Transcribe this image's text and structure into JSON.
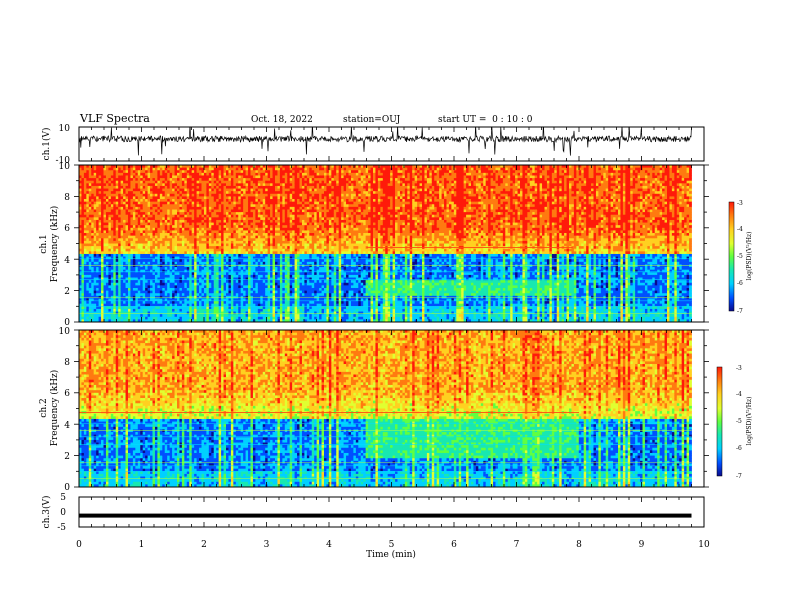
{
  "header": {
    "title": "VLF Spectra",
    "date": "Oct. 18, 2022",
    "station": "station=OUJ",
    "start": "start UT =  0 : 10 : 0"
  },
  "colors": {
    "spectrum_ramp": [
      "#0a0a8c",
      "#0050ff",
      "#00d0ff",
      "#18e8b0",
      "#60ff40",
      "#e0ff30",
      "#ffd020",
      "#ff7a10",
      "#ff1a0a"
    ]
  },
  "chart_data": [
    {
      "type": "line",
      "name": "ch1-waveform",
      "ylabel": "ch.1(V)",
      "ylim": [
        -10,
        10
      ],
      "ytick_labels": [
        "10",
        "-10"
      ],
      "xlim": [
        0,
        10
      ],
      "baseline": 3,
      "notes_values_typical_range": [
        0,
        6
      ]
    },
    {
      "type": "heatmap",
      "name": "ch1-spectrogram",
      "ylabel": "ch.1\nFrequency (kHz)",
      "ylim": [
        0,
        10
      ],
      "ytick_labels": [
        "0",
        "2",
        "4",
        "6",
        "8",
        "10"
      ],
      "xlim": [
        0,
        9.8
      ],
      "colorbar": {
        "label": "log(PSD)(V²/Hz)",
        "range": [
          -7,
          -3
        ],
        "tick_labels": [
          "-3",
          "-4",
          "-5",
          "-6",
          "-7"
        ]
      },
      "features": {
        "quiet_band_upper_kHz": 4.3,
        "enhanced_band_kHz": [
          1.7,
          2.6
        ],
        "enhanced_band_time_min": [
          4.6,
          7.9
        ],
        "emission_line_kHz": 4.75
      }
    },
    {
      "type": "heatmap",
      "name": "ch2-spectrogram",
      "ylabel": "ch.2\nFrequency (kHz)",
      "ylim": [
        0,
        10
      ],
      "ytick_labels": [
        "0",
        "2",
        "4",
        "6",
        "8",
        "10"
      ],
      "xlim": [
        0,
        9.8
      ],
      "colorbar": {
        "label": "log(PSD)(V²/Hz)",
        "range": [
          -7,
          -3
        ],
        "tick_labels": [
          "-3",
          "-4",
          "-5",
          "-6",
          "-7"
        ]
      },
      "features": {
        "quiet_band_upper_kHz": 4.4,
        "enhanced_band_kHz": [
          1.8,
          4.6
        ],
        "enhanced_band_time_min": [
          4.6,
          8.0
        ],
        "emission_line_kHz": 4.75
      }
    },
    {
      "type": "line",
      "name": "ch3-waveform",
      "ylabel": "ch.3(V)",
      "ylim": [
        -5,
        5
      ],
      "ytick_labels": [
        "5",
        "0",
        "-5"
      ],
      "xlim": [
        0,
        9.8
      ],
      "value": -1.2
    }
  ],
  "x_axis": {
    "label": "Time (min)",
    "range": [
      0,
      10
    ],
    "tick_labels": [
      "0",
      "1",
      "2",
      "3",
      "4",
      "5",
      "6",
      "7",
      "8",
      "9",
      "10"
    ]
  }
}
